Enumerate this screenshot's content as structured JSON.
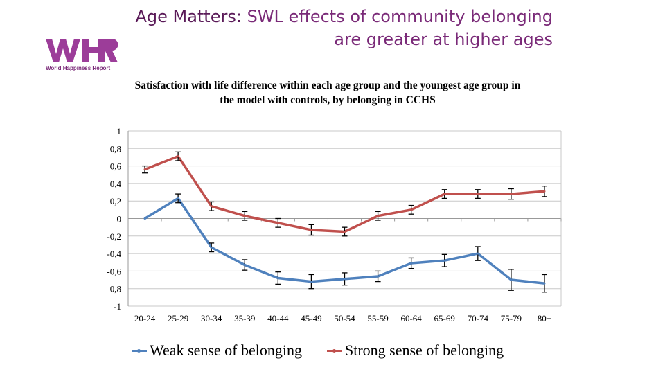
{
  "slide": {
    "title_bold": "Age Matters:",
    "title_rest": " SWL effects of community belonging are greater at higher ages",
    "logo_text": "WHR",
    "logo_caption": "World Happiness Report"
  },
  "colors": {
    "weak": "#4f81bd",
    "strong": "#c0504d",
    "grid": "#c8c8c8",
    "title": "#7a2a78"
  },
  "chart_data": {
    "type": "line",
    "title": "Satisfaction with life difference within each age group and the youngest age group in the model with controls, by belonging in CCHS",
    "categories": [
      "20-24",
      "25-29",
      "30-34",
      "35-39",
      "40-44",
      "45-49",
      "50-54",
      "55-59",
      "60-64",
      "65-69",
      "70-74",
      "75-79",
      "80+"
    ],
    "ylim": [
      -1,
      1
    ],
    "yticks": [
      1,
      0.8,
      0.6,
      0.4,
      0.2,
      0,
      -0.2,
      -0.4,
      -0.6,
      -0.8,
      -1
    ],
    "ytick_labels": [
      "1",
      "0,8",
      "0,6",
      "0,4",
      "0,2",
      "0",
      "-0,2",
      "-0,4",
      "-0,6",
      "-0,8",
      "-1"
    ],
    "grid": true,
    "legend_position": "bottom",
    "series": [
      {
        "name": "Weak sense of belonging",
        "values": [
          0.0,
          0.23,
          -0.33,
          -0.53,
          -0.68,
          -0.72,
          -0.69,
          -0.66,
          -0.51,
          -0.48,
          -0.4,
          -0.7,
          -0.74
        ],
        "error": [
          0.0,
          0.05,
          0.05,
          0.06,
          0.07,
          0.08,
          0.07,
          0.06,
          0.06,
          0.07,
          0.08,
          0.12,
          0.1
        ],
        "has_error_bar": [
          false,
          true,
          true,
          true,
          true,
          true,
          true,
          true,
          true,
          true,
          true,
          true,
          true
        ]
      },
      {
        "name": "Strong sense of belonging",
        "values": [
          0.56,
          0.71,
          0.14,
          0.03,
          -0.05,
          -0.13,
          -0.15,
          0.03,
          0.1,
          0.28,
          0.28,
          0.28,
          0.31
        ],
        "error": [
          0.04,
          0.05,
          0.05,
          0.05,
          0.05,
          0.06,
          0.05,
          0.05,
          0.05,
          0.05,
          0.05,
          0.06,
          0.06
        ],
        "has_error_bar": [
          true,
          true,
          true,
          true,
          true,
          true,
          true,
          true,
          true,
          true,
          true,
          true,
          true
        ]
      }
    ]
  }
}
